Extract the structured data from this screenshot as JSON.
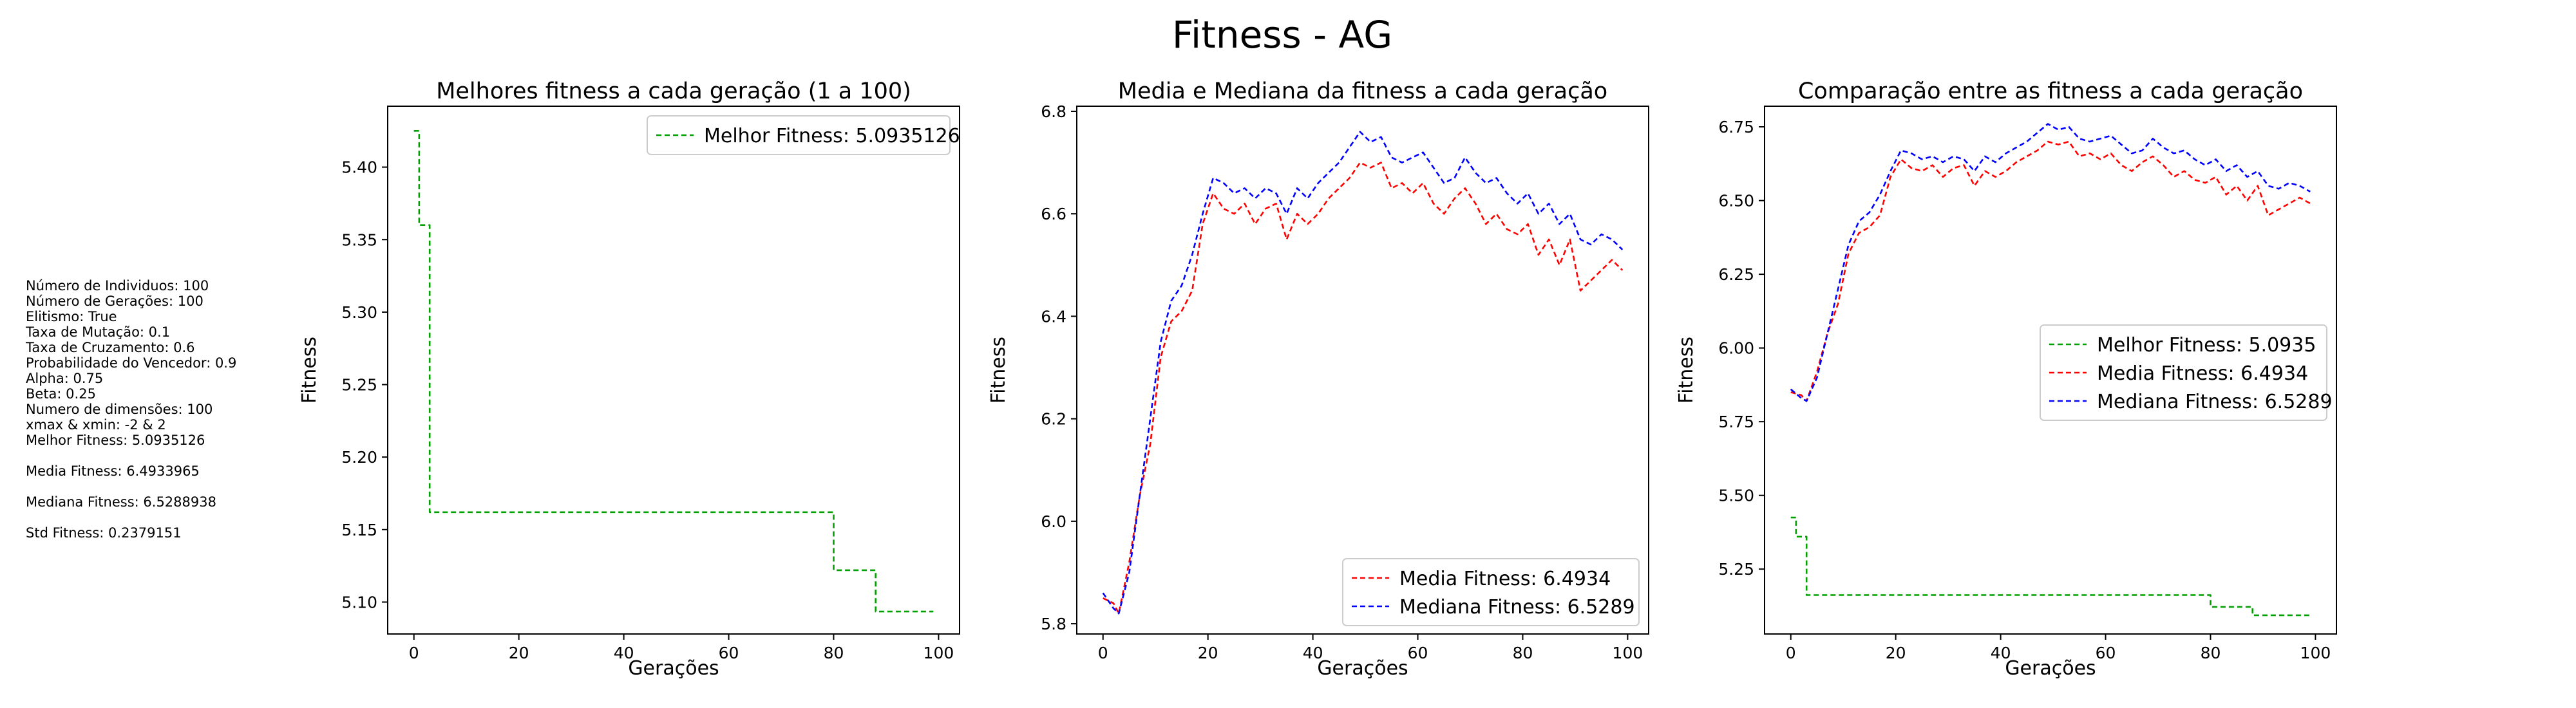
{
  "suptitle": "Fitness - AG",
  "params": [
    "Número de Individuos: 100",
    "Número de Gerações: 100",
    "Elitismo: True",
    "Taxa de Mutação: 0.1",
    "Taxa de Cruzamento: 0.6",
    "Probabilidade do Vencedor: 0.9",
    "Alpha: 0.75",
    "Beta: 0.25",
    "Numero de dimensões: 100",
    "xmax & xmin: -2 & 2",
    "Melhor Fitness: 5.0935126",
    "",
    "Media Fitness: 6.4933965",
    "",
    "Mediana Fitness: 6.5288938",
    "",
    "Std Fitness: 0.2379151"
  ],
  "colors": {
    "best": "#00a000",
    "mean": "#ff0000",
    "median": "#0000ff"
  },
  "chart_data": [
    {
      "type": "line",
      "title": "Melhores fitness a cada geração (1 a 100)",
      "xlabel": "Gerações",
      "ylabel": "Fitness",
      "xlim": [
        -5,
        104
      ],
      "ylim": [
        5.078,
        5.442
      ],
      "xticks": [
        0,
        20,
        40,
        60,
        80,
        100
      ],
      "yticks": [
        5.1,
        5.15,
        5.2,
        5.25,
        5.3,
        5.35,
        5.4
      ],
      "ytick_labels": [
        "5.10",
        "5.15",
        "5.20",
        "5.25",
        "5.30",
        "5.35",
        "5.40"
      ],
      "grid": false,
      "legend": "upper right",
      "series": [
        {
          "name": "Melhor Fitness: 5.0935126",
          "color": "#00a000",
          "dashed": true,
          "steps": [
            [
              0,
              5.425
            ],
            [
              1,
              5.36
            ],
            [
              3,
              5.162
            ],
            [
              80,
              5.122
            ],
            [
              88,
              5.0935
            ],
            [
              99,
              5.0935
            ]
          ]
        }
      ]
    },
    {
      "type": "line",
      "title": "Media e Mediana da fitness a cada geração",
      "xlabel": "Gerações",
      "ylabel": "Fitness",
      "xlim": [
        -5,
        104
      ],
      "ylim": [
        5.78,
        6.81
      ],
      "xticks": [
        0,
        20,
        40,
        60,
        80,
        100
      ],
      "yticks": [
        5.8,
        6.0,
        6.2,
        6.4,
        6.6,
        6.8
      ],
      "ytick_labels": [
        "5.8",
        "6.0",
        "6.2",
        "6.4",
        "6.6",
        "6.8"
      ],
      "grid": false,
      "legend": "lower right",
      "series": [
        {
          "name": "Media Fitness: 6.4934",
          "color": "#ff0000",
          "dashed": true,
          "points": [
            [
              0,
              5.85
            ],
            [
              2,
              5.84
            ],
            [
              3,
              5.82
            ],
            [
              5,
              5.92
            ],
            [
              7,
              6.05
            ],
            [
              9,
              6.15
            ],
            [
              11,
              6.32
            ],
            [
              13,
              6.39
            ],
            [
              15,
              6.41
            ],
            [
              17,
              6.45
            ],
            [
              19,
              6.58
            ],
            [
              21,
              6.64
            ],
            [
              23,
              6.61
            ],
            [
              25,
              6.6
            ],
            [
              27,
              6.62
            ],
            [
              29,
              6.58
            ],
            [
              31,
              6.61
            ],
            [
              33,
              6.62
            ],
            [
              35,
              6.55
            ],
            [
              37,
              6.6
            ],
            [
              39,
              6.58
            ],
            [
              41,
              6.6
            ],
            [
              43,
              6.63
            ],
            [
              45,
              6.65
            ],
            [
              47,
              6.67
            ],
            [
              49,
              6.7
            ],
            [
              51,
              6.69
            ],
            [
              53,
              6.7
            ],
            [
              55,
              6.65
            ],
            [
              57,
              6.66
            ],
            [
              59,
              6.64
            ],
            [
              61,
              6.66
            ],
            [
              63,
              6.62
            ],
            [
              65,
              6.6
            ],
            [
              67,
              6.63
            ],
            [
              69,
              6.65
            ],
            [
              71,
              6.62
            ],
            [
              73,
              6.58
            ],
            [
              75,
              6.6
            ],
            [
              77,
              6.57
            ],
            [
              79,
              6.56
            ],
            [
              81,
              6.58
            ],
            [
              83,
              6.52
            ],
            [
              85,
              6.55
            ],
            [
              87,
              6.5
            ],
            [
              89,
              6.55
            ],
            [
              91,
              6.45
            ],
            [
              93,
              6.47
            ],
            [
              95,
              6.49
            ],
            [
              97,
              6.51
            ],
            [
              99,
              6.49
            ]
          ]
        },
        {
          "name": "Mediana Fitness: 6.5289",
          "color": "#0000ff",
          "dashed": true,
          "points": [
            [
              0,
              5.86
            ],
            [
              2,
              5.83
            ],
            [
              3,
              5.82
            ],
            [
              5,
              5.9
            ],
            [
              7,
              6.05
            ],
            [
              9,
              6.2
            ],
            [
              11,
              6.35
            ],
            [
              13,
              6.43
            ],
            [
              15,
              6.46
            ],
            [
              17,
              6.52
            ],
            [
              19,
              6.6
            ],
            [
              21,
              6.67
            ],
            [
              23,
              6.66
            ],
            [
              25,
              6.64
            ],
            [
              27,
              6.65
            ],
            [
              29,
              6.63
            ],
            [
              31,
              6.65
            ],
            [
              33,
              6.64
            ],
            [
              35,
              6.6
            ],
            [
              37,
              6.65
            ],
            [
              39,
              6.63
            ],
            [
              41,
              6.66
            ],
            [
              43,
              6.68
            ],
            [
              45,
              6.7
            ],
            [
              47,
              6.73
            ],
            [
              49,
              6.76
            ],
            [
              51,
              6.74
            ],
            [
              53,
              6.75
            ],
            [
              55,
              6.71
            ],
            [
              57,
              6.7
            ],
            [
              59,
              6.71
            ],
            [
              61,
              6.72
            ],
            [
              63,
              6.69
            ],
            [
              65,
              6.66
            ],
            [
              67,
              6.67
            ],
            [
              69,
              6.71
            ],
            [
              71,
              6.68
            ],
            [
              73,
              6.66
            ],
            [
              75,
              6.67
            ],
            [
              77,
              6.64
            ],
            [
              79,
              6.62
            ],
            [
              81,
              6.64
            ],
            [
              83,
              6.6
            ],
            [
              85,
              6.62
            ],
            [
              87,
              6.58
            ],
            [
              89,
              6.6
            ],
            [
              91,
              6.55
            ],
            [
              93,
              6.54
            ],
            [
              95,
              6.56
            ],
            [
              97,
              6.55
            ],
            [
              99,
              6.53
            ]
          ]
        }
      ]
    },
    {
      "type": "line",
      "title": "Comparação entre as fitness a cada geração",
      "xlabel": "Gerações",
      "ylabel": "Fitness",
      "xlim": [
        -5,
        104
      ],
      "ylim": [
        5.03,
        6.82
      ],
      "xticks": [
        0,
        20,
        40,
        60,
        80,
        100
      ],
      "yticks": [
        5.25,
        5.5,
        5.75,
        6.0,
        6.25,
        6.5,
        6.75
      ],
      "ytick_labels": [
        "5.25",
        "5.50",
        "5.75",
        "6.00",
        "6.25",
        "6.50",
        "6.75"
      ],
      "grid": false,
      "legend": "center right",
      "series": [
        {
          "name": "Melhor Fitness: 5.0935",
          "color": "#00a000",
          "dashed": true,
          "steps": [
            [
              0,
              5.425
            ],
            [
              1,
              5.36
            ],
            [
              3,
              5.162
            ],
            [
              80,
              5.122
            ],
            [
              88,
              5.0935
            ],
            [
              99,
              5.0935
            ]
          ]
        },
        {
          "name": "Media Fitness: 6.4934",
          "color": "#ff0000",
          "dashed": true,
          "points": [
            [
              0,
              5.85
            ],
            [
              2,
              5.84
            ],
            [
              3,
              5.82
            ],
            [
              5,
              5.92
            ],
            [
              7,
              6.05
            ],
            [
              9,
              6.15
            ],
            [
              11,
              6.32
            ],
            [
              13,
              6.39
            ],
            [
              15,
              6.41
            ],
            [
              17,
              6.45
            ],
            [
              19,
              6.58
            ],
            [
              21,
              6.64
            ],
            [
              23,
              6.61
            ],
            [
              25,
              6.6
            ],
            [
              27,
              6.62
            ],
            [
              29,
              6.58
            ],
            [
              31,
              6.61
            ],
            [
              33,
              6.62
            ],
            [
              35,
              6.55
            ],
            [
              37,
              6.6
            ],
            [
              39,
              6.58
            ],
            [
              41,
              6.6
            ],
            [
              43,
              6.63
            ],
            [
              45,
              6.65
            ],
            [
              47,
              6.67
            ],
            [
              49,
              6.7
            ],
            [
              51,
              6.69
            ],
            [
              53,
              6.7
            ],
            [
              55,
              6.65
            ],
            [
              57,
              6.66
            ],
            [
              59,
              6.64
            ],
            [
              61,
              6.66
            ],
            [
              63,
              6.62
            ],
            [
              65,
              6.6
            ],
            [
              67,
              6.63
            ],
            [
              69,
              6.65
            ],
            [
              71,
              6.62
            ],
            [
              73,
              6.58
            ],
            [
              75,
              6.6
            ],
            [
              77,
              6.57
            ],
            [
              79,
              6.56
            ],
            [
              81,
              6.58
            ],
            [
              83,
              6.52
            ],
            [
              85,
              6.55
            ],
            [
              87,
              6.5
            ],
            [
              89,
              6.55
            ],
            [
              91,
              6.45
            ],
            [
              93,
              6.47
            ],
            [
              95,
              6.49
            ],
            [
              97,
              6.51
            ],
            [
              99,
              6.49
            ]
          ]
        },
        {
          "name": "Mediana Fitness: 6.5289",
          "color": "#0000ff",
          "dashed": true,
          "points": [
            [
              0,
              5.86
            ],
            [
              2,
              5.83
            ],
            [
              3,
              5.82
            ],
            [
              5,
              5.9
            ],
            [
              7,
              6.05
            ],
            [
              9,
              6.2
            ],
            [
              11,
              6.35
            ],
            [
              13,
              6.43
            ],
            [
              15,
              6.46
            ],
            [
              17,
              6.52
            ],
            [
              19,
              6.6
            ],
            [
              21,
              6.67
            ],
            [
              23,
              6.66
            ],
            [
              25,
              6.64
            ],
            [
              27,
              6.65
            ],
            [
              29,
              6.63
            ],
            [
              31,
              6.65
            ],
            [
              33,
              6.64
            ],
            [
              35,
              6.6
            ],
            [
              37,
              6.65
            ],
            [
              39,
              6.63
            ],
            [
              41,
              6.66
            ],
            [
              43,
              6.68
            ],
            [
              45,
              6.7
            ],
            [
              47,
              6.73
            ],
            [
              49,
              6.76
            ],
            [
              51,
              6.74
            ],
            [
              53,
              6.75
            ],
            [
              55,
              6.71
            ],
            [
              57,
              6.7
            ],
            [
              59,
              6.71
            ],
            [
              61,
              6.72
            ],
            [
              63,
              6.69
            ],
            [
              65,
              6.66
            ],
            [
              67,
              6.67
            ],
            [
              69,
              6.71
            ],
            [
              71,
              6.68
            ],
            [
              73,
              6.66
            ],
            [
              75,
              6.67
            ],
            [
              77,
              6.64
            ],
            [
              79,
              6.62
            ],
            [
              81,
              6.64
            ],
            [
              83,
              6.6
            ],
            [
              85,
              6.62
            ],
            [
              87,
              6.58
            ],
            [
              89,
              6.6
            ],
            [
              91,
              6.55
            ],
            [
              93,
              6.54
            ],
            [
              95,
              6.56
            ],
            [
              97,
              6.55
            ],
            [
              99,
              6.53
            ]
          ]
        }
      ]
    }
  ]
}
